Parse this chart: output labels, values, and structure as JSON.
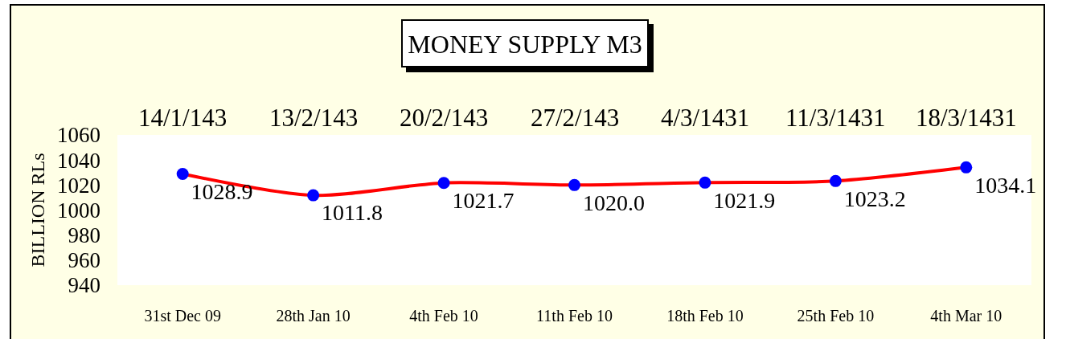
{
  "chart_data": {
    "type": "line",
    "title": "MONEY SUPPLY M3",
    "ylabel": "BILLION RLs",
    "categories": [
      "31st Dec 09",
      "28th Jan 10",
      "4th Feb 10",
      "11th Feb 10",
      "18th Feb 10",
      "25th Feb 10",
      "4th Mar 10"
    ],
    "series": [
      {
        "color": "#ff0000",
        "colors": [
          "#0000ff",
          "#0000ff",
          "#0000ff",
          "#0000ff",
          "#0000ff",
          "#0000ff",
          "#0000ff"
        ],
        "values": [
          1028.9,
          1011.8,
          1021.7,
          1020.0,
          1021.9,
          1023.2,
          1034.1
        ],
        "value_labels": [
          "1028.9",
          "1011.8",
          "1021.7",
          "1020.0",
          "1021.9",
          "1023.2",
          "1034.1"
        ]
      }
    ],
    "ylim": [
      940,
      1060
    ],
    "yticks": [
      940,
      960,
      980,
      1000,
      1020,
      1040,
      1060
    ],
    "marker": "circle",
    "line_style": "solid",
    "annotations": [
      "14/1/143",
      "13/2/143",
      "20/2/143",
      "27/2/143",
      "4/3/1431",
      "11/3/1431",
      "18/3/1431"
    ]
  }
}
